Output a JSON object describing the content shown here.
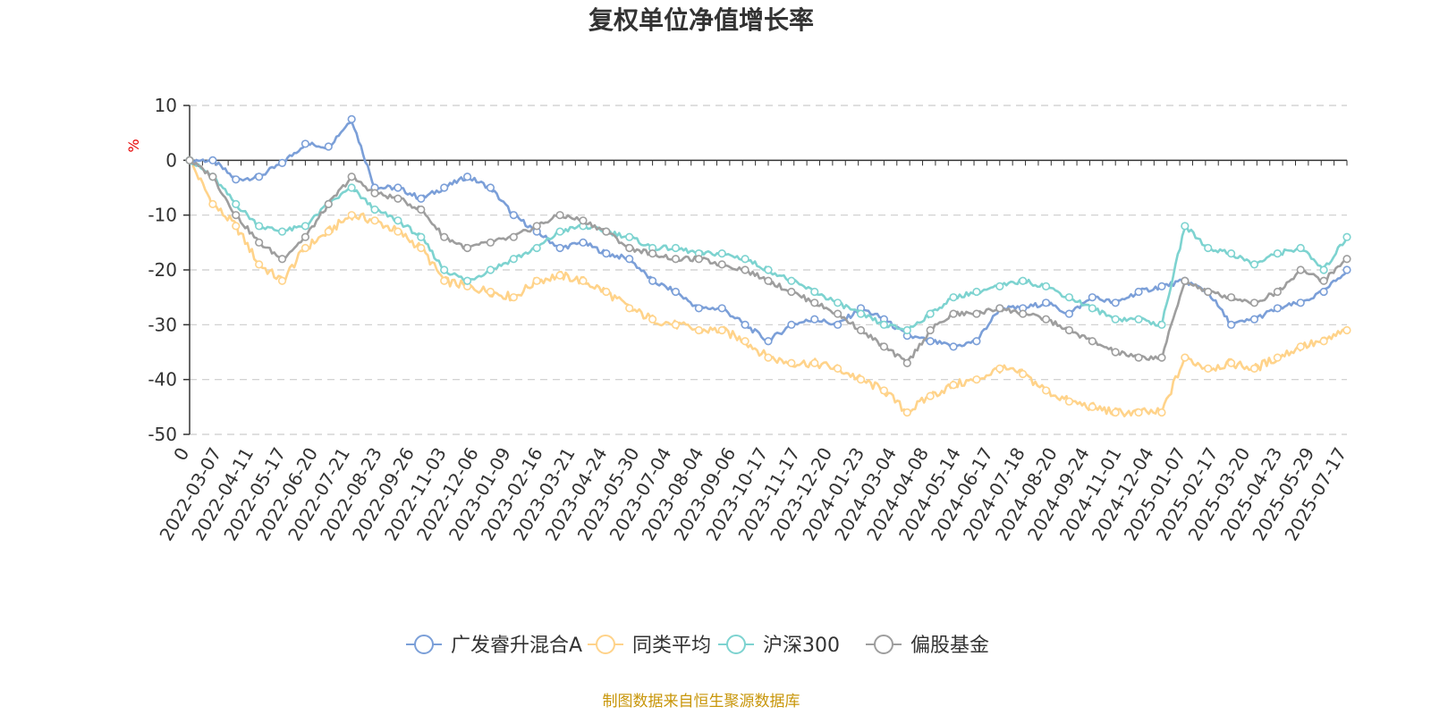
{
  "chart_data": {
    "type": "line",
    "title": "复权单位净值增长率",
    "y_unit": "%",
    "ylim": [
      -50,
      10
    ],
    "y_ticks": [
      10,
      0,
      -10,
      -20,
      -30,
      -40,
      -50
    ],
    "grid": "dashed horizontal",
    "legend_position": "bottom-center",
    "x_tick_labels": [
      "0",
      "2022-03-07",
      "2022-04-11",
      "2022-05-17",
      "2022-06-20",
      "2022-07-21",
      "2022-08-23",
      "2022-09-26",
      "2022-11-03",
      "2022-12-06",
      "2023-01-09",
      "2023-02-16",
      "2023-03-21",
      "2023-04-24",
      "2023-05-30",
      "2023-07-04",
      "2023-08-04",
      "2023-09-06",
      "2023-10-17",
      "2023-11-17",
      "2023-12-20",
      "2024-01-23",
      "2024-03-04",
      "2024-04-08",
      "2024-05-14",
      "2024-06-17",
      "2024-07-18",
      "2024-08-20",
      "2024-09-24",
      "2024-11-01",
      "2024-12-04",
      "2025-01-07",
      "2025-02-17",
      "2025-03-20",
      "2025-04-23",
      "2025-05-29",
      "2025-07-17"
    ],
    "series": [
      {
        "name": "广发睿升混合A",
        "color": "#7b9fd8",
        "values": [
          0,
          0,
          -3.5,
          -3,
          -0.5,
          3,
          2.5,
          7.5,
          -5,
          -5,
          -7,
          -5,
          -3,
          -5,
          -10,
          -13,
          -16,
          -15,
          -17,
          -18,
          -22,
          -24,
          -27,
          -27,
          -30,
          -33,
          -30,
          -29,
          -30,
          -27,
          -29,
          -32,
          -33,
          -34,
          -33,
          -27,
          -27,
          -26,
          -28,
          -25,
          -26,
          -24,
          -23,
          -22,
          -24,
          -30,
          -29,
          -27,
          -26,
          -24,
          -20
        ]
      },
      {
        "name": "同类平均",
        "color": "#ffd38a",
        "values": [
          0,
          -8,
          -12,
          -19,
          -22,
          -16,
          -13,
          -10,
          -11,
          -13,
          -16,
          -22,
          -23,
          -24,
          -25,
          -22,
          -21,
          -22,
          -24,
          -27,
          -29,
          -30,
          -31,
          -31,
          -33,
          -36,
          -37,
          -37,
          -38,
          -40,
          -42,
          -46,
          -43,
          -41,
          -40,
          -38,
          -39,
          -42,
          -44,
          -45,
          -46,
          -46,
          -46,
          -36,
          -38,
          -37,
          -38,
          -36,
          -34,
          -33,
          -31
        ]
      },
      {
        "name": "沪深300",
        "color": "#7dd3d0",
        "values": [
          0,
          -3,
          -8,
          -12,
          -13,
          -12,
          -8,
          -5,
          -9,
          -11,
          -14,
          -20,
          -22,
          -20,
          -18,
          -16,
          -13,
          -12,
          -13,
          -14,
          -16,
          -16,
          -17,
          -17,
          -18,
          -20,
          -22,
          -24,
          -26,
          -28,
          -30,
          -31,
          -28,
          -25,
          -24,
          -23,
          -22,
          -23,
          -25,
          -27,
          -29,
          -29,
          -30,
          -12,
          -16,
          -17,
          -19,
          -17,
          -16,
          -20,
          -14
        ]
      },
      {
        "name": "偏股基金",
        "color": "#9e9e9e",
        "values": [
          0,
          -3,
          -10,
          -15,
          -18,
          -14,
          -8,
          -3,
          -6,
          -7,
          -9,
          -14,
          -16,
          -15,
          -14,
          -12,
          -10,
          -11,
          -13,
          -16,
          -17,
          -18,
          -18,
          -19,
          -20,
          -22,
          -24,
          -26,
          -28,
          -31,
          -34,
          -37,
          -31,
          -28,
          -28,
          -27,
          -28,
          -29,
          -31,
          -33,
          -35,
          -36,
          -36,
          -22,
          -24,
          -25,
          -26,
          -24,
          -20,
          -22,
          -18
        ]
      }
    ]
  },
  "source_note": "制图数据来自恒生聚源数据库"
}
